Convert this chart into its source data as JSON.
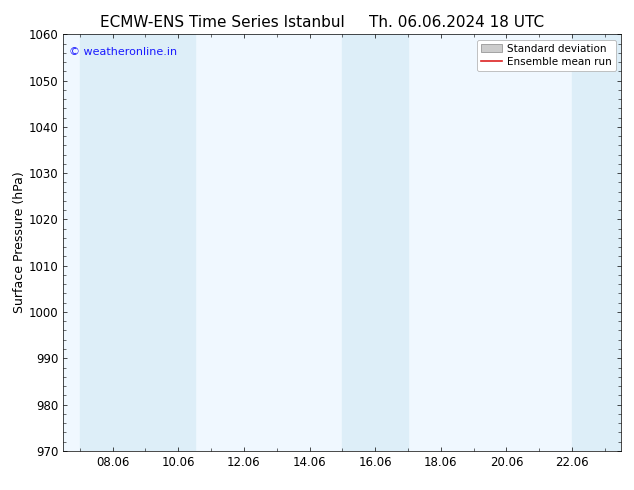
{
  "title_left": "ECMW-ENS Time Series Istanbul",
  "title_right": "Th. 06.06.2024 18 UTC",
  "ylabel": "Surface Pressure (hPa)",
  "ylim": [
    970,
    1060
  ],
  "yticks": [
    970,
    980,
    990,
    1000,
    1010,
    1020,
    1030,
    1040,
    1050,
    1060
  ],
  "xlabel": "",
  "xtick_labels": [
    "08.06",
    "10.06",
    "12.06",
    "14.06",
    "16.06",
    "18.06",
    "20.06",
    "22.06"
  ],
  "xtick_positions": [
    8,
    10,
    12,
    14,
    16,
    18,
    20,
    22
  ],
  "xlim": [
    6.5,
    23.5
  ],
  "shaded_bands": [
    {
      "x_start": 7.0,
      "x_end": 9.0,
      "color": "#ddeef8"
    },
    {
      "x_start": 9.0,
      "x_end": 10.5,
      "color": "#ddeef8"
    },
    {
      "x_start": 15.0,
      "x_end": 16.0,
      "color": "#ddeef8"
    },
    {
      "x_start": 16.0,
      "x_end": 17.0,
      "color": "#ddeef8"
    },
    {
      "x_start": 22.0,
      "x_end": 23.5,
      "color": "#ddeef8"
    }
  ],
  "watermark_text": "© weatheronline.in",
  "watermark_color": "#1a1aff",
  "background_color": "#ffffff",
  "plot_bg_color": "#f0f8ff",
  "title_fontsize": 11,
  "axis_label_fontsize": 9,
  "tick_fontsize": 8.5,
  "legend_fontsize": 7.5,
  "legend_items": [
    {
      "label": "Standard deviation",
      "color": "#bbbbbb",
      "type": "fill"
    },
    {
      "label": "Ensemble mean run",
      "color": "#dd2222",
      "type": "line"
    }
  ]
}
